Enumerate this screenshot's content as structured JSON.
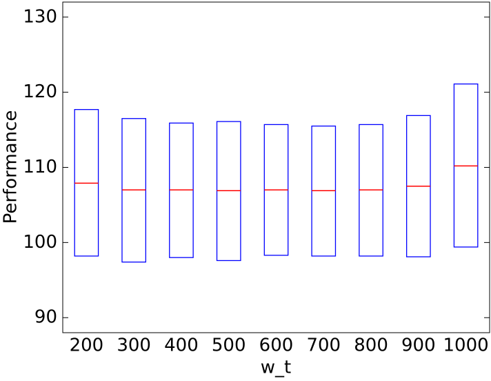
{
  "chart_data": {
    "type": "box",
    "x_label": "w_t",
    "y_label": "Performance",
    "categories": [
      "200",
      "300",
      "400",
      "500",
      "600",
      "700",
      "800",
      "900",
      "1000"
    ],
    "series": [
      {
        "box_color": "#0000ff",
        "median_color": "#ff0000",
        "q1": [
          98.2,
          97.4,
          98.0,
          97.6,
          98.3,
          98.2,
          98.2,
          98.1,
          99.4
        ],
        "median": [
          107.9,
          107.0,
          107.0,
          106.9,
          107.0,
          106.9,
          107.0,
          107.5,
          110.2
        ],
        "q3": [
          117.7,
          116.5,
          115.9,
          116.1,
          115.7,
          115.5,
          115.7,
          116.9,
          121.1
        ]
      }
    ],
    "ylim": [
      88,
      132
    ],
    "yticks": [
      90,
      100,
      110,
      120,
      130
    ]
  }
}
